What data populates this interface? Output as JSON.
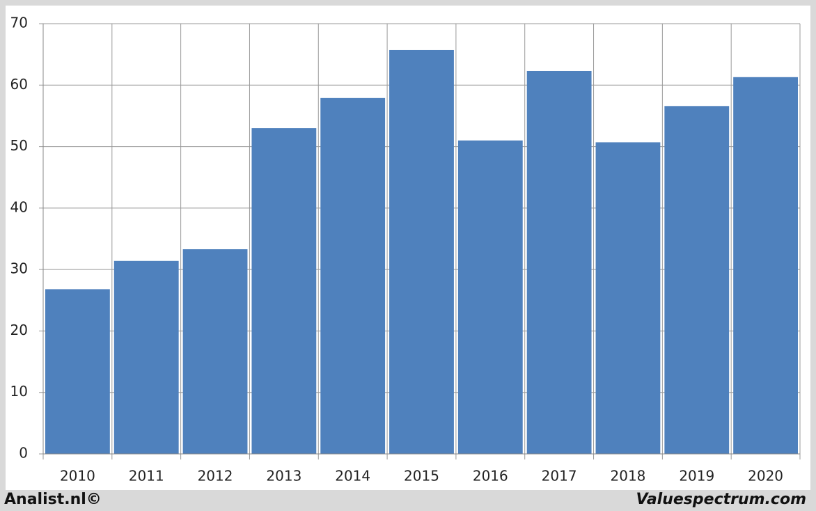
{
  "chart_data": {
    "type": "bar",
    "categories": [
      "2010",
      "2011",
      "2012",
      "2013",
      "2014",
      "2015",
      "2016",
      "2017",
      "2018",
      "2019",
      "2020"
    ],
    "values": [
      26.8,
      31.4,
      33.3,
      53.0,
      57.9,
      65.7,
      51.0,
      62.3,
      50.7,
      56.6,
      61.3
    ],
    "color": "#4f81bd",
    "ylim": [
      0,
      70
    ],
    "yticks": [
      0,
      10,
      20,
      30,
      40,
      50,
      60,
      70
    ],
    "grid": true
  },
  "footer": {
    "left": "Analist.nl©",
    "right": "Valuespectrum.com"
  }
}
